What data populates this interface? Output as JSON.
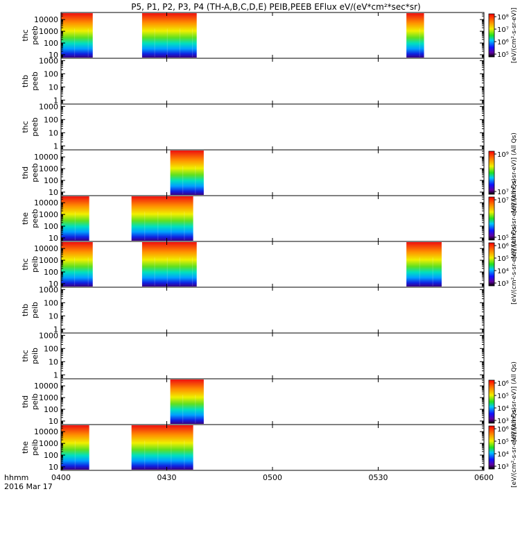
{
  "title": "P5, P1, P2, P3, P4 (TH-A,B,C,D,E) PEIB,PEEB EFlux eV/(eV*cm²*sec*sr)",
  "chart_data": {
    "type": "heatmap",
    "title": "P5, P1, P2, P3, P4 (TH-A,B,C,D,E) PEIB,PEEB EFlux eV/(eV*cm²*sec*sr)",
    "x_axis": {
      "label": "hhmm",
      "date": "2016 Mar 17",
      "ticks": [
        "0400",
        "0430",
        "0500",
        "0530",
        "0600"
      ],
      "range_minutes": [
        0,
        120
      ]
    },
    "panels": [
      {
        "label1": "thc",
        "label2": "peeb",
        "ylog": true,
        "ticks": [
          "10",
          "100",
          "1000",
          "10000"
        ],
        "yrange": [
          5,
          40000
        ],
        "intervals": [
          [
            0,
            9
          ],
          [
            23,
            38.5
          ],
          [
            98,
            103
          ]
        ],
        "colorbar": {
          "ticks": [
            "10⁵",
            "10⁶",
            "10⁷",
            "10⁸"
          ],
          "label": "[eV/(cm²-s-sr-eV)]"
        }
      },
      {
        "label1": "thb",
        "label2": "peeb",
        "ylog": true,
        "ticks": [
          "1",
          "10",
          "100",
          "1000"
        ],
        "yrange": [
          0.5,
          1500
        ],
        "intervals": []
      },
      {
        "label1": "thc",
        "label2": "peeb",
        "ylog": true,
        "ticks": [
          "1",
          "10",
          "100",
          "1000"
        ],
        "yrange": [
          0.5,
          1500
        ],
        "intervals": []
      },
      {
        "label1": "thd",
        "label2": "peeb",
        "ylog": true,
        "ticks": [
          "10",
          "100",
          "1000",
          "10000"
        ],
        "yrange": [
          5,
          40000
        ],
        "intervals": [
          [
            31,
            40.5
          ]
        ],
        "colorbar": {
          "ticks": [
            "10⁷",
            "10⁹"
          ],
          "label": "[eV/(cm²-s-sr-eV)] (All Qs)"
        }
      },
      {
        "label1": "the",
        "label2": "peeb",
        "ylog": true,
        "ticks": [
          "10",
          "100",
          "1000",
          "10000"
        ],
        "yrange": [
          5,
          40000
        ],
        "intervals": [
          [
            0,
            8
          ],
          [
            20,
            37.5
          ]
        ],
        "colorbar": {
          "ticks": [
            "10⁵",
            "10⁷"
          ],
          "label": "[eV/(cm²-s-sr-eV)] (All Qs)"
        }
      },
      {
        "label1": "thc",
        "label2": "peib",
        "ylog": true,
        "ticks": [
          "10",
          "100",
          "1000",
          "10000"
        ],
        "yrange": [
          5,
          40000
        ],
        "intervals": [
          [
            0,
            9
          ],
          [
            23,
            38.5
          ],
          [
            98,
            108
          ]
        ],
        "colorbar": {
          "ticks": [
            "10³",
            "10⁴",
            "10⁵",
            "10⁶"
          ],
          "label": "[eV/(cm²-s-sr-eV)] (All Qs)"
        }
      },
      {
        "label1": "thb",
        "label2": "peib",
        "ylog": true,
        "ticks": [
          "1",
          "10",
          "100",
          "1000"
        ],
        "yrange": [
          0.5,
          1500
        ],
        "intervals": []
      },
      {
        "label1": "thc",
        "label2": "peib",
        "ylog": true,
        "ticks": [
          "1",
          "10",
          "100",
          "1000"
        ],
        "yrange": [
          0.5,
          1500
        ],
        "intervals": []
      },
      {
        "label1": "thd",
        "label2": "peib",
        "ylog": true,
        "ticks": [
          "10",
          "100",
          "1000",
          "10000"
        ],
        "yrange": [
          5,
          40000
        ],
        "intervals": [
          [
            31,
            40.5
          ]
        ],
        "colorbar": {
          "ticks": [
            "10³",
            "10⁴",
            "10⁵",
            "10⁶"
          ],
          "label": "[eV/(cm²-s-sr-eV)] (All Qs)"
        }
      },
      {
        "label1": "the",
        "label2": "peib",
        "ylog": true,
        "ticks": [
          "10",
          "100",
          "1000",
          "10000"
        ],
        "yrange": [
          5,
          40000
        ],
        "intervals": [
          [
            0,
            8
          ],
          [
            20,
            37.5
          ]
        ],
        "colorbar": {
          "ticks": [
            "10³",
            "10⁴",
            "10⁵",
            "10⁶"
          ],
          "label": "[eV/(cm²-s-sr-eV)] (All Qs)"
        }
      }
    ]
  }
}
